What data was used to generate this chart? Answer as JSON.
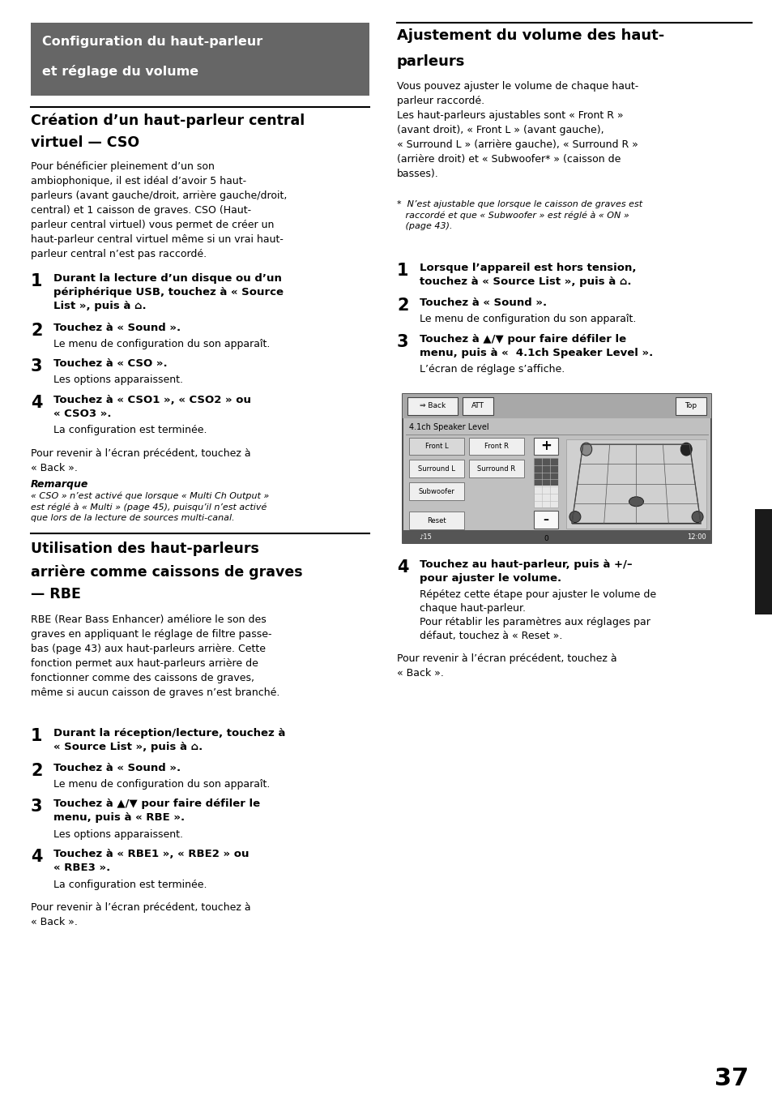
{
  "page_width": 9.54,
  "page_height": 13.52,
  "bg_color": "#ffffff",
  "header_box_color": "#666666",
  "header_text_line1": "Configuration du haut-parleur",
  "header_text_line2": "et réglage du volume",
  "header_text_color": "#ffffff",
  "divider_color": "#000000",
  "section1_title_line1": "Création d’un haut-parleur central",
  "section1_title_line2": "virtuel — CSO",
  "section1_body": "Pour bénéficier pleinement d’un son\nambiophonique, il est idéal d’avoir 5 haut-\nparleurs (avant gauche/droit, arrière gauche/droit,\ncentral) et 1 caisson de graves. CSO (Haut-\nparleur central virtuel) vous permet de créer un\nhaut-parleur central virtuel même si un vrai haut-\nparleur central n’est pas raccordé.",
  "s1_steps": [
    {
      "num": "1",
      "bold": "Durant la lecture d’un disque ou d’un\npériphérique USB, touchez à « Source\nList », puis à ⌂.",
      "normal": ""
    },
    {
      "num": "2",
      "bold": "Touchez à « Sound ».",
      "normal": "Le menu de configuration du son apparaît."
    },
    {
      "num": "3",
      "bold": "Touchez à « CSO ».",
      "normal": "Les options apparaissent."
    },
    {
      "num": "4",
      "bold": "Touchez à « CSO1 », « CSO2 » ou\n« CSO3 ».",
      "normal": "La configuration est terminée."
    }
  ],
  "s1_back": "Pour revenir à l’écran précédent, touchez à\n« Back ».",
  "s1_remark_title": "Remarque",
  "s1_remark_body": "« CSO » n’est activé que lorsque « Multi Ch Output »\nest réglé à « Multi » (page 45), puisqu’il n’est activé\nque lors de la lecture de sources multi-canal.",
  "section2_title_line1": "Utilisation des haut-parleurs",
  "section2_title_line2": "arrière comme caissons de graves",
  "section2_title_line3": "— RBE",
  "section2_body": "RBE (Rear Bass Enhancer) améliore le son des\ngraves en appliquant le réglage de filtre passe-\nbas (page 43) aux haut-parleurs arrière. Cette\nfonction permet aux haut-parleurs arrière de\nfonctionner comme des caissons de graves,\nmême si aucun caisson de graves n’est branché.",
  "s2_steps": [
    {
      "num": "1",
      "bold": "Durant la réception/lecture, touchez à\n« Source List », puis à ⌂.",
      "normal": ""
    },
    {
      "num": "2",
      "bold": "Touchez à « Sound ».",
      "normal": "Le menu de configuration du son apparaît."
    },
    {
      "num": "3",
      "bold": "Touchez à ▲/▼ pour faire défiler le\nmenu, puis à « RBE ».",
      "normal": "Les options apparaissent."
    },
    {
      "num": "4",
      "bold": "Touchez à « RBE1 », « RBE2 » ou\n« RBE3 ».",
      "normal": "La configuration est terminée."
    }
  ],
  "s2_back": "Pour revenir à l’écran précédent, touchez à\n« Back ».",
  "right_title_line1": "Ajustement du volume des haut-",
  "right_title_line2": "parleurs",
  "right_body": "Vous pouvez ajuster le volume de chaque haut-\nparleur raccordé.\nLes haut-parleurs ajustables sont « Front R »\n(avant droit), « Front L » (avant gauche),\n« Surround L » (arrière gauche), « Surround R »\n(arrière droit) et « Subwoofer* » (caisson de\nbasses).",
  "right_footnote": "*  N’est ajustable que lorsque le caisson de graves est\n   raccordé et que « Subwoofer » est réglé à « ON »\n   (page 43).",
  "r_steps": [
    {
      "num": "1",
      "bold": "Lorsque l’appareil est hors tension,\ntouchez à « Source List », puis à ⌂.",
      "normal": ""
    },
    {
      "num": "2",
      "bold": "Touchez à « Sound ».",
      "normal": "Le menu de configuration du son apparaît."
    },
    {
      "num": "3",
      "bold": "Touchez à ▲/▼ pour faire défiler le\nmenu, puis à «  4.1ch Speaker Level ».",
      "normal": "L’écran de réglage s’affiche."
    },
    {
      "num": "4",
      "bold": "Touchez au haut-parleur, puis à +/–\npour ajuster le volume.",
      "normal": "Répétez cette étape pour ajuster le volume de\nchaque haut-parleur.\nPour rétablir les paramètres aux réglages par\ndéfaut, touchez à « Reset »."
    }
  ],
  "r_back": "Pour revenir à l’écran précédent, touchez à\n« Back ».",
  "page_number": "37",
  "tab_color": "#1a1a1a"
}
